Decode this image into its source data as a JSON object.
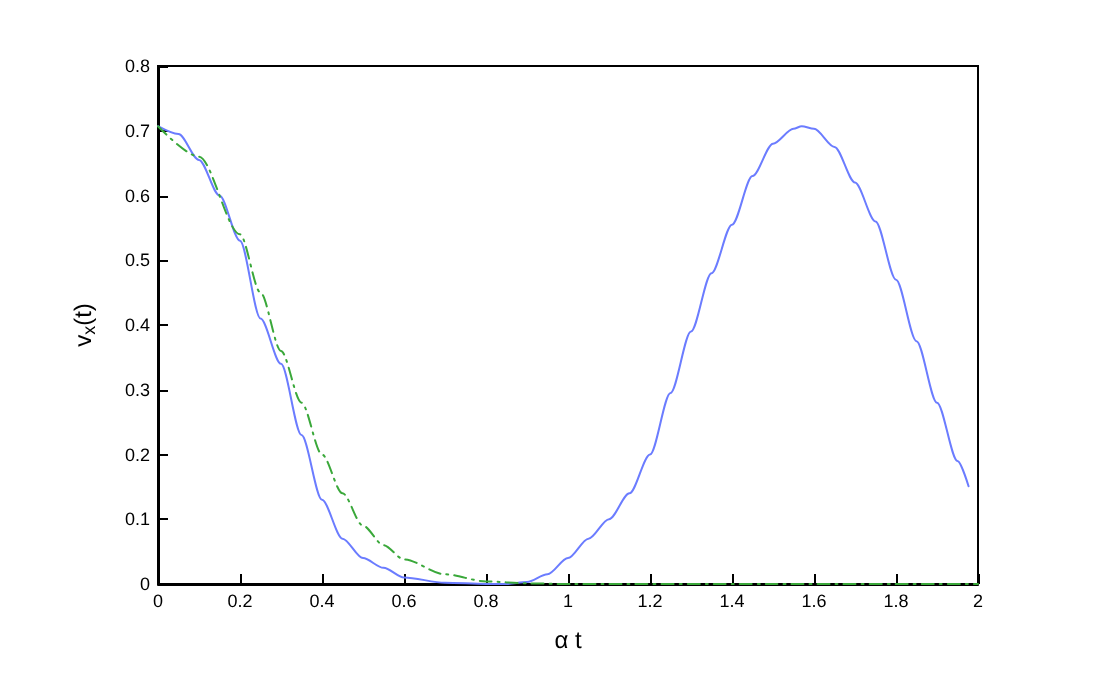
{
  "chart_data": {
    "type": "line",
    "xlabel": "α t",
    "ylabel": "v$_{x}$(t)",
    "xlim": [
      0,
      2
    ],
    "xticks": [
      0,
      0.2,
      0.4,
      0.6,
      0.8,
      1,
      1.2,
      1.4,
      1.6,
      1.8,
      2
    ],
    "ylim": [
      0,
      0.8
    ],
    "yticks": [
      0,
      0.1,
      0.2,
      0.3,
      0.4,
      0.5,
      0.6,
      0.7,
      0.8
    ],
    "grid": false,
    "marker": "none",
    "series": [
      {
        "color": "#6b7cff",
        "line_style": "solid",
        "x": [
          0,
          0.05,
          0.1,
          0.15,
          0.2,
          0.25,
          0.3,
          0.35,
          0.4,
          0.45,
          0.5,
          0.55,
          0.6,
          0.7,
          0.8,
          0.85,
          0.9,
          0.95,
          1,
          1.05,
          1.1,
          1.15,
          1.2,
          1.25,
          1.3,
          1.35,
          1.4,
          1.45,
          1.5,
          1.55,
          1.57,
          1.6,
          1.65,
          1.7,
          1.75,
          1.8,
          1.85,
          1.9,
          1.95,
          1.977
        ],
        "values": [
          0.707,
          0.695,
          0.655,
          0.6,
          0.53,
          0.41,
          0.34,
          0.23,
          0.13,
          0.07,
          0.04,
          0.025,
          0.01,
          0.002,
          0,
          0,
          0.003,
          0.015,
          0.04,
          0.07,
          0.1,
          0.14,
          0.2,
          0.295,
          0.39,
          0.48,
          0.555,
          0.63,
          0.68,
          0.703,
          0.707,
          0.703,
          0.675,
          0.62,
          0.56,
          0.47,
          0.375,
          0.28,
          0.19,
          0.151
        ]
      },
      {
        "color": "#3aa83a",
        "line_style": "dashed",
        "x": [
          0,
          0.1,
          0.2,
          0.25,
          0.3,
          0.35,
          0.4,
          0.45,
          0.5,
          0.55,
          0.6,
          0.7,
          0.8,
          0.9,
          1,
          1.5,
          2
        ],
        "values": [
          0.707,
          0.66,
          0.54,
          0.45,
          0.36,
          0.28,
          0.2,
          0.14,
          0.09,
          0.06,
          0.038,
          0.015,
          0.004,
          0.001,
          0,
          0,
          0
        ]
      }
    ]
  }
}
